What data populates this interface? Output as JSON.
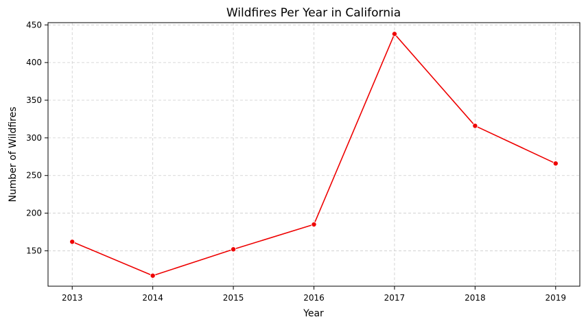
{
  "chart_data": {
    "type": "line",
    "title": "Wildfires Per Year in California",
    "xlabel": "Year",
    "ylabel": "Number of Wildfires",
    "x": [
      2013,
      2014,
      2015,
      2016,
      2017,
      2018,
      2019
    ],
    "x_tick_labels": [
      "2013",
      "2014",
      "2015",
      "2016",
      "2017",
      "2018",
      "2019"
    ],
    "series": [
      {
        "values": [
          162,
          117,
          152,
          185,
          438,
          316,
          266
        ],
        "color": "#ee0000",
        "marker": "circle"
      }
    ],
    "y_ticks": [
      150,
      200,
      250,
      300,
      350,
      400,
      450
    ],
    "y_tick_labels": [
      "150",
      "200",
      "250",
      "300",
      "350",
      "400",
      "450"
    ],
    "xlim": [
      2012.7,
      2019.3
    ],
    "ylim": [
      103,
      453
    ],
    "grid": true,
    "legend": false
  }
}
